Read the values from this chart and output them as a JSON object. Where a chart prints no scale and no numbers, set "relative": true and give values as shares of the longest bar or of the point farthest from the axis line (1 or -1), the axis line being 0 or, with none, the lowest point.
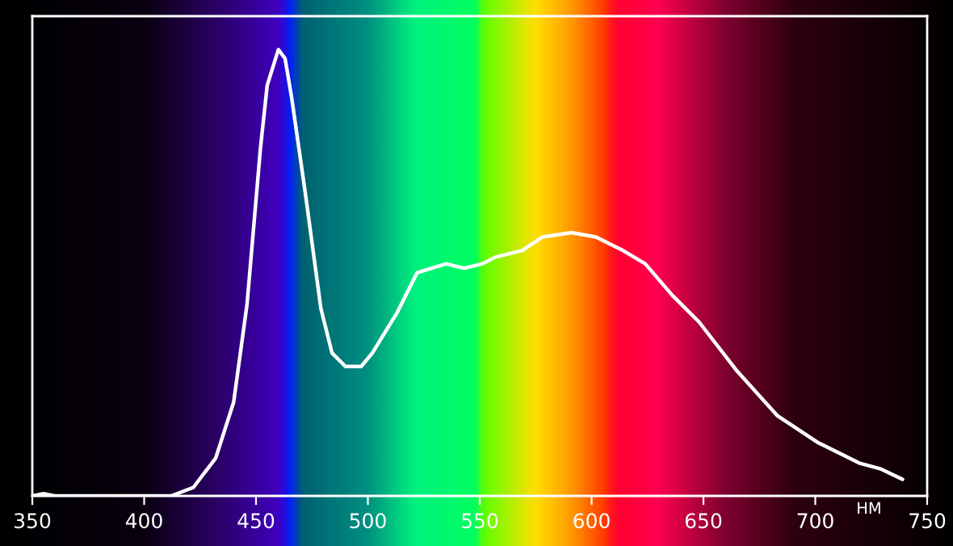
{
  "chart_data": {
    "type": "line",
    "relative": true,
    "xlabel": "НМ",
    "xlim": [
      350,
      750
    ],
    "xticks": [
      350,
      400,
      450,
      500,
      550,
      600,
      650,
      700,
      750
    ],
    "tick_labels": "x",
    "grid": false,
    "legend": false,
    "marker": "none",
    "line_style": "solid",
    "series": [
      {
        "color": "#ffffff",
        "x": [
          350,
          355,
          360,
          412,
          422,
          432,
          440,
          446,
          452,
          455,
          460,
          463,
          466,
          472,
          479,
          484,
          490,
          497,
          502,
          513,
          522,
          535,
          543,
          551,
          557,
          569,
          578,
          591,
          602,
          614,
          624,
          636,
          648,
          665,
          683,
          701,
          720,
          729,
          739
        ],
        "values": [
          0.0,
          0.005,
          0.0,
          0.0,
          0.019,
          0.085,
          0.21,
          0.43,
          0.78,
          0.92,
          1.0,
          0.98,
          0.89,
          0.68,
          0.42,
          0.32,
          0.29,
          0.29,
          0.32,
          0.41,
          0.5,
          0.52,
          0.51,
          0.52,
          0.535,
          0.55,
          0.58,
          0.59,
          0.58,
          0.55,
          0.52,
          0.45,
          0.39,
          0.28,
          0.18,
          0.12,
          0.073,
          0.061,
          0.037
        ]
      }
    ]
  }
}
